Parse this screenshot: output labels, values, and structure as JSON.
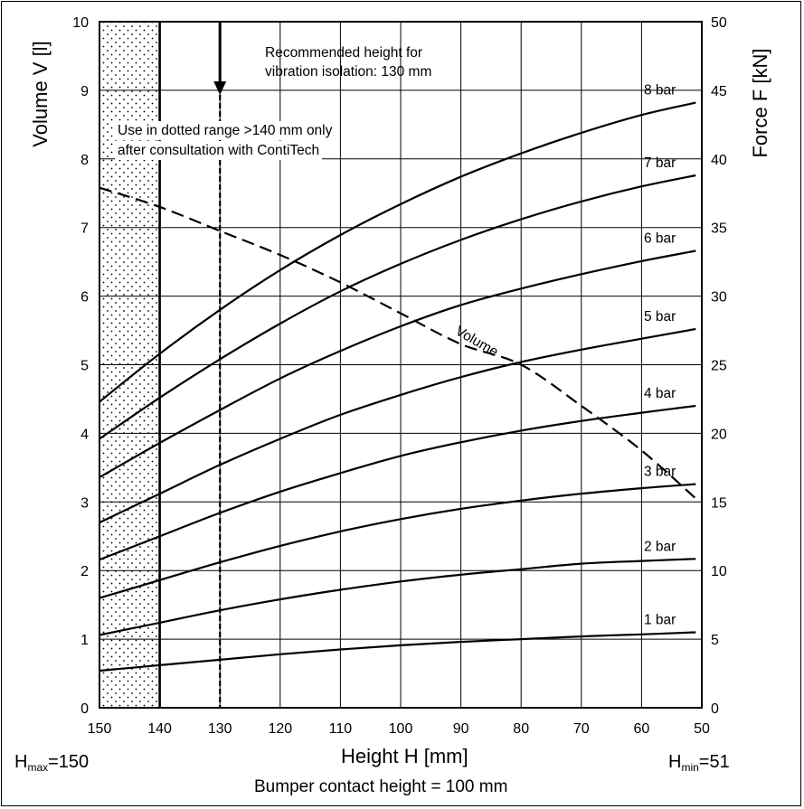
{
  "chart_data": {
    "type": "line",
    "xlabel": "Height H [mm]",
    "ylabel_left": "Volume V [l]",
    "ylabel_right": "Force F [kN]",
    "x_reversed": true,
    "xlim": [
      150,
      50
    ],
    "ylim_left": [
      0,
      10
    ],
    "ylim_right": [
      0,
      50
    ],
    "x_ticks": [
      150,
      140,
      130,
      120,
      110,
      100,
      90,
      80,
      70,
      60,
      50
    ],
    "y_left_ticks": [
      0,
      1,
      2,
      3,
      4,
      5,
      6,
      7,
      8,
      9,
      10
    ],
    "y_right_ticks": [
      0,
      5,
      10,
      15,
      20,
      25,
      30,
      35,
      40,
      45,
      50
    ],
    "grid": true,
    "x": [
      150,
      140,
      130,
      120,
      110,
      100,
      90,
      80,
      70,
      60,
      51
    ],
    "force_series_kN": [
      {
        "name": "1 bar",
        "values": [
          2.7,
          3.1,
          3.5,
          3.9,
          4.25,
          4.55,
          4.8,
          5.0,
          5.2,
          5.35,
          5.5
        ]
      },
      {
        "name": "2 bar",
        "values": [
          5.3,
          6.2,
          7.1,
          7.9,
          8.6,
          9.2,
          9.7,
          10.1,
          10.5,
          10.7,
          10.85
        ]
      },
      {
        "name": "3 bar",
        "values": [
          8.0,
          9.3,
          10.6,
          11.8,
          12.85,
          13.75,
          14.5,
          15.1,
          15.6,
          16.0,
          16.3
        ]
      },
      {
        "name": "4 bar",
        "values": [
          10.8,
          12.5,
          14.2,
          15.75,
          17.1,
          18.35,
          19.35,
          20.2,
          20.9,
          21.5,
          22.0
        ]
      },
      {
        "name": "5 bar",
        "values": [
          13.5,
          15.6,
          17.7,
          19.6,
          21.35,
          22.8,
          24.1,
          25.2,
          26.1,
          26.9,
          27.6
        ]
      },
      {
        "name": "6 bar",
        "values": [
          16.8,
          19.3,
          21.7,
          24.0,
          26.0,
          27.8,
          29.35,
          30.55,
          31.6,
          32.55,
          33.3
        ]
      },
      {
        "name": "7 bar",
        "values": [
          19.6,
          22.6,
          25.4,
          28.0,
          30.35,
          32.35,
          34.1,
          35.6,
          36.9,
          38.0,
          38.8
        ]
      },
      {
        "name": "8 bar",
        "values": [
          22.3,
          25.8,
          29.0,
          31.9,
          34.45,
          36.7,
          38.7,
          40.4,
          41.9,
          43.2,
          44.1
        ]
      }
    ],
    "volume_series_l": {
      "name": "Volume",
      "x": [
        150,
        140,
        130,
        120,
        110,
        100,
        90,
        80,
        70,
        60,
        51
      ],
      "values": [
        7.58,
        7.3,
        6.95,
        6.6,
        6.2,
        5.75,
        5.3,
        5.0,
        4.4,
        3.75,
        3.05
      ]
    },
    "vertical_lines": [
      {
        "x": 140,
        "style": "solid"
      },
      {
        "x": 130,
        "style": "dashed"
      }
    ],
    "shaded_range": {
      "from": 150,
      "to": 140,
      "pattern": "dotted"
    },
    "annotations": {
      "recommended_line1": "Recommended height for",
      "recommended_line2": "vibration isolation: 130 mm",
      "dotted_line1": "Use in dotted range >140 mm only",
      "dotted_line2": "after consultation with ContiTech",
      "volume_label": "Volume",
      "hmax_prefix": "H",
      "hmax_sub": "max",
      "hmax_value": "=150",
      "hmin_prefix": "H",
      "hmin_sub": "min",
      "hmin_value": "=51",
      "bumper": "Bumper contact height = 100 mm"
    }
  }
}
